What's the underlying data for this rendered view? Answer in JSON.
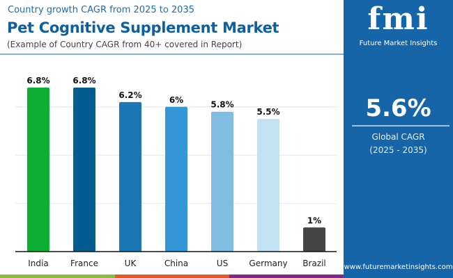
{
  "header": {
    "subtitle": "Country growth CAGR from 2025 to 2035",
    "title": "Pet Cognitive Supplement Market",
    "note": "(Example of Country CAGR from 40+ covered in Report)"
  },
  "panel": {
    "logo": "fmi",
    "logo_text": "Future Market Insights",
    "value": "5.6%",
    "label1": "Global CAGR",
    "label2": "(2025 - 2035)",
    "url": "www.futuremarketinsights.com"
  },
  "chart_data": {
    "type": "bar",
    "title": "Pet Cognitive Supplement Market",
    "categories": [
      "India",
      "France",
      "UK",
      "China",
      "US",
      "Germany",
      "Brazil"
    ],
    "values": [
      6.8,
      6.8,
      6.2,
      6,
      5.8,
      5.5,
      1
    ],
    "labels": [
      "6.8%",
      "6.8%",
      "6.2%",
      "6%",
      "5.8%",
      "5.5%",
      "1%"
    ],
    "colors": [
      "#0aaf33",
      "#045b90",
      "#1b77b3",
      "#3396d6",
      "#80bde3",
      "#c2e2f4",
      "#454545"
    ],
    "ylim": [
      0,
      8
    ],
    "grid": true,
    "legend": "none"
  },
  "stripes": [
    "#8abd40",
    "#e35a2a",
    "#7f2a85"
  ]
}
